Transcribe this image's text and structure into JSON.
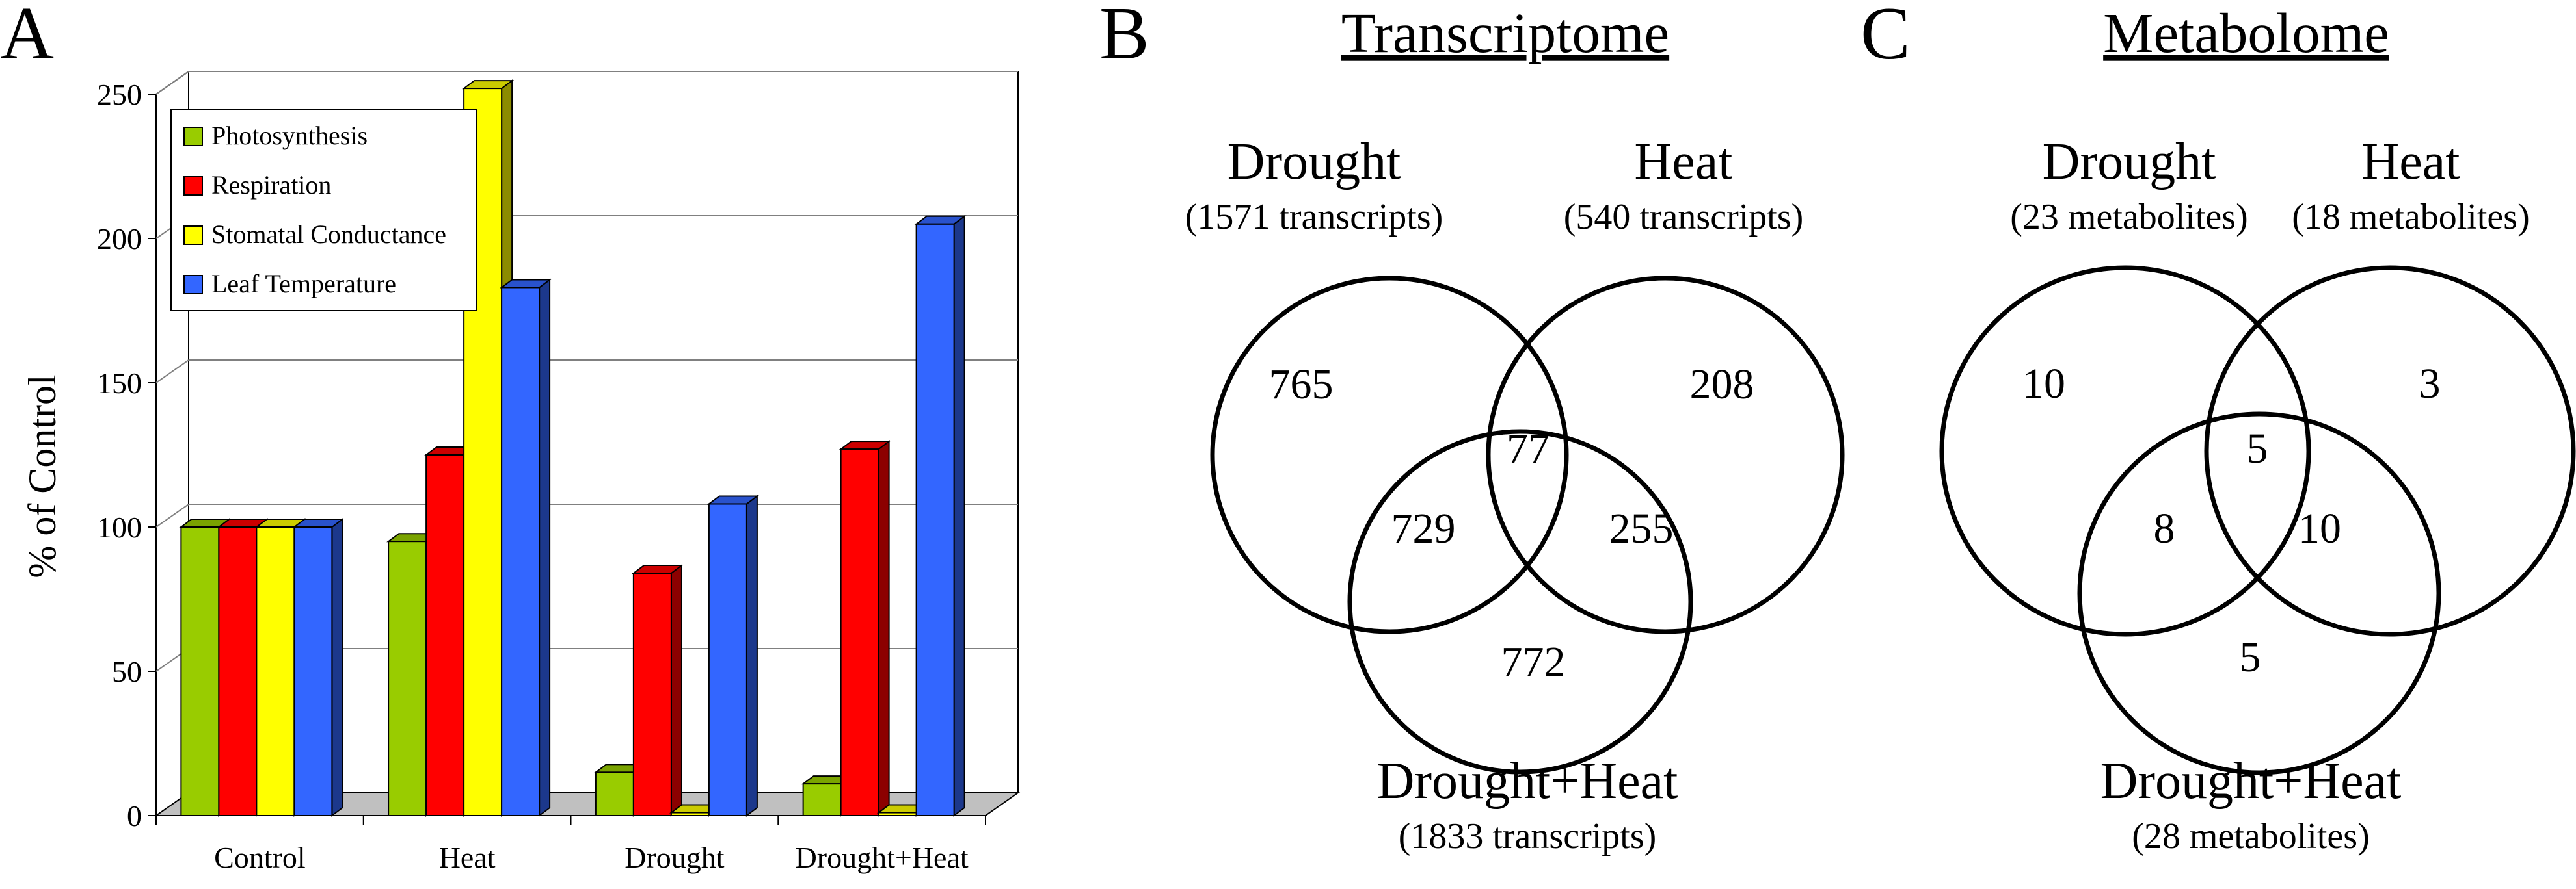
{
  "panels": {
    "a_letter": "A",
    "b_letter": "B",
    "c_letter": "C"
  },
  "chart_data": {
    "type": "bar",
    "style": "3d-clustered",
    "categories": [
      "Control",
      "Heat",
      "Drought",
      "Drought+Heat"
    ],
    "series": [
      {
        "name": "Photosynthesis",
        "color": "#99cc00",
        "values": [
          100,
          95,
          15,
          11
        ]
      },
      {
        "name": "Respiration",
        "color": "#ff0000",
        "values": [
          100,
          125,
          84,
          127
        ]
      },
      {
        "name": "Stomatal Conductance",
        "color": "#ffff00",
        "values": [
          100,
          252,
          1,
          1
        ]
      },
      {
        "name": "Leaf Temperature",
        "color": "#3366ff",
        "values": [
          100,
          183,
          108,
          205
        ]
      }
    ],
    "title": "",
    "xlabel": "",
    "ylabel": "% of Control",
    "ylim": [
      0,
      250
    ],
    "yticks": [
      "0",
      "50",
      "100",
      "150",
      "200",
      "250"
    ],
    "grid": true,
    "legend": "top-left"
  },
  "venn_transcriptome": {
    "title": "Transcriptome",
    "sets": [
      {
        "name": "Drought",
        "count_label": "(1571 transcripts)"
      },
      {
        "name": "Heat",
        "count_label": "(540 transcripts)"
      },
      {
        "name": "Drought+Heat",
        "count_label": "(1833 transcripts)"
      }
    ],
    "regions": {
      "drought_only": "765",
      "heat_only": "208",
      "drought_heat": "77",
      "drought_combined": "729",
      "heat_combined": "255",
      "combined_only": "772"
    }
  },
  "venn_metabolome": {
    "title": "Metabolome",
    "sets": [
      {
        "name": "Drought",
        "count_label": "(23 metabolites)"
      },
      {
        "name": "Heat",
        "count_label": "(18 metabolites)"
      },
      {
        "name": "Drought+Heat",
        "count_label": "(28 metabolites)"
      }
    ],
    "regions": {
      "drought_only": "10",
      "heat_only": "3",
      "drought_heat": "5",
      "drought_combined": "8",
      "heat_combined": "10",
      "combined_only": "5"
    }
  }
}
